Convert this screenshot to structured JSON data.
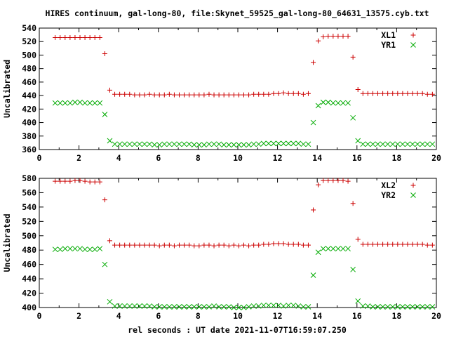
{
  "figure": {
    "title": "HIRES continuum, gal-long-80, file:Skynet_59525_gal-long-80_64631_13575.cyb.txt",
    "xlabel": "rel seconds : UT date 2021-11-07T16:59:07.250"
  },
  "chart_data": [
    {
      "type": "scatter",
      "xlabel": "",
      "ylabel": "Uncalibrated",
      "xlim": [
        0,
        20
      ],
      "ylim": [
        360,
        540
      ],
      "xticks": [
        "0",
        "2",
        "4",
        "6",
        "8",
        "10",
        "12",
        "14",
        "16",
        "18",
        "20"
      ],
      "yticks": [
        "360",
        "380",
        "400",
        "420",
        "440",
        "460",
        "480",
        "500",
        "520",
        "540"
      ],
      "grid": false,
      "legend_position": "top-right",
      "x": [
        0.8,
        1.05,
        1.3,
        1.55,
        1.8,
        2.05,
        2.3,
        2.55,
        2.8,
        3.05,
        3.3,
        3.55,
        3.8,
        4.05,
        4.3,
        4.55,
        4.8,
        5.05,
        5.3,
        5.55,
        5.8,
        6.05,
        6.3,
        6.55,
        6.8,
        7.05,
        7.3,
        7.55,
        7.8,
        8.05,
        8.3,
        8.55,
        8.8,
        9.05,
        9.3,
        9.55,
        9.8,
        10.05,
        10.3,
        10.55,
        10.8,
        11.05,
        11.3,
        11.55,
        11.8,
        12.05,
        12.3,
        12.55,
        12.8,
        13.05,
        13.3,
        13.55,
        13.8,
        14.05,
        14.3,
        14.55,
        14.8,
        15.05,
        15.3,
        15.55,
        15.8,
        16.05,
        16.3,
        16.55,
        16.8,
        17.05,
        17.3,
        17.55,
        17.8,
        18.05,
        18.3,
        18.55,
        18.8,
        19.05,
        19.3,
        19.55,
        19.8
      ],
      "series": [
        {
          "name": "XL1",
          "marker": "plus",
          "color": "#cc0000",
          "values": [
            526,
            526,
            526,
            526,
            526,
            526,
            526,
            526,
            526,
            526,
            502,
            448,
            442,
            442,
            442,
            442,
            441,
            441,
            441,
            442,
            441,
            441,
            441,
            442,
            441,
            441,
            441,
            441,
            441,
            441,
            441,
            442,
            441,
            441,
            441,
            441,
            441,
            441,
            441,
            441,
            442,
            442,
            442,
            442,
            443,
            443,
            444,
            443,
            443,
            443,
            442,
            443,
            489,
            521,
            527,
            528,
            528,
            528,
            528,
            528,
            497,
            449,
            443,
            443,
            443,
            443,
            443,
            443,
            443,
            443,
            443,
            443,
            443,
            443,
            443,
            442,
            442
          ]
        },
        {
          "name": "YR1",
          "marker": "cross",
          "color": "#00aa00",
          "values": [
            429,
            429,
            429,
            429,
            430,
            430,
            429,
            429,
            429,
            429,
            412,
            373,
            368,
            368,
            368,
            368,
            368,
            368,
            368,
            368,
            367,
            367,
            368,
            368,
            368,
            368,
            368,
            368,
            367,
            367,
            367,
            368,
            368,
            368,
            367,
            367,
            367,
            367,
            367,
            367,
            368,
            368,
            369,
            369,
            369,
            369,
            369,
            369,
            369,
            369,
            368,
            368,
            400,
            425,
            430,
            430,
            429,
            429,
            429,
            429,
            407,
            373,
            368,
            368,
            368,
            368,
            368,
            368,
            368,
            368,
            368,
            368,
            368,
            368,
            368,
            368,
            368
          ]
        }
      ]
    },
    {
      "type": "scatter",
      "xlabel": "rel seconds : UT date 2021-11-07T16:59:07.250",
      "ylabel": "Uncalibrated",
      "xlim": [
        0,
        20
      ],
      "ylim": [
        400,
        580
      ],
      "xticks": [
        "0",
        "2",
        "4",
        "6",
        "8",
        "10",
        "12",
        "14",
        "16",
        "18",
        "20"
      ],
      "yticks": [
        "400",
        "420",
        "440",
        "460",
        "480",
        "500",
        "520",
        "540",
        "560",
        "580"
      ],
      "grid": false,
      "legend_position": "top-right",
      "x": [
        0.8,
        1.05,
        1.3,
        1.55,
        1.8,
        2.05,
        2.3,
        2.55,
        2.8,
        3.05,
        3.3,
        3.55,
        3.8,
        4.05,
        4.3,
        4.55,
        4.8,
        5.05,
        5.3,
        5.55,
        5.8,
        6.05,
        6.3,
        6.55,
        6.8,
        7.05,
        7.3,
        7.55,
        7.8,
        8.05,
        8.3,
        8.55,
        8.8,
        9.05,
        9.3,
        9.55,
        9.8,
        10.05,
        10.3,
        10.55,
        10.8,
        11.05,
        11.3,
        11.55,
        11.8,
        12.05,
        12.3,
        12.55,
        12.8,
        13.05,
        13.3,
        13.55,
        13.8,
        14.05,
        14.3,
        14.55,
        14.8,
        15.05,
        15.3,
        15.55,
        15.8,
        16.05,
        16.3,
        16.55,
        16.8,
        17.05,
        17.3,
        17.55,
        17.8,
        18.05,
        18.3,
        18.55,
        18.8,
        19.05,
        19.3,
        19.55,
        19.8
      ],
      "series": [
        {
          "name": "XL2",
          "marker": "plus",
          "color": "#cc0000",
          "values": [
            576,
            576,
            576,
            576,
            577,
            577,
            576,
            575,
            575,
            575,
            550,
            493,
            487,
            487,
            487,
            487,
            487,
            487,
            487,
            487,
            487,
            486,
            487,
            487,
            486,
            487,
            487,
            487,
            486,
            486,
            487,
            487,
            486,
            487,
            487,
            486,
            487,
            486,
            487,
            486,
            487,
            487,
            488,
            488,
            489,
            489,
            489,
            488,
            488,
            488,
            487,
            487,
            536,
            571,
            577,
            577,
            577,
            577,
            577,
            576,
            545,
            495,
            488,
            488,
            488,
            488,
            488,
            488,
            488,
            488,
            488,
            488,
            488,
            488,
            488,
            487,
            487
          ]
        },
        {
          "name": "YR2",
          "marker": "cross",
          "color": "#00aa00",
          "values": [
            481,
            481,
            482,
            482,
            482,
            482,
            481,
            481,
            481,
            482,
            460,
            408,
            402,
            402,
            402,
            402,
            402,
            402,
            402,
            402,
            401,
            401,
            401,
            401,
            401,
            401,
            401,
            401,
            401,
            401,
            401,
            401,
            402,
            401,
            401,
            401,
            400,
            400,
            400,
            401,
            402,
            402,
            403,
            403,
            403,
            403,
            402,
            403,
            403,
            402,
            401,
            401,
            445,
            477,
            482,
            482,
            482,
            482,
            482,
            482,
            453,
            409,
            402,
            402,
            401,
            401,
            401,
            401,
            401,
            401,
            401,
            401,
            401,
            401,
            401,
            401,
            401
          ]
        }
      ]
    }
  ]
}
